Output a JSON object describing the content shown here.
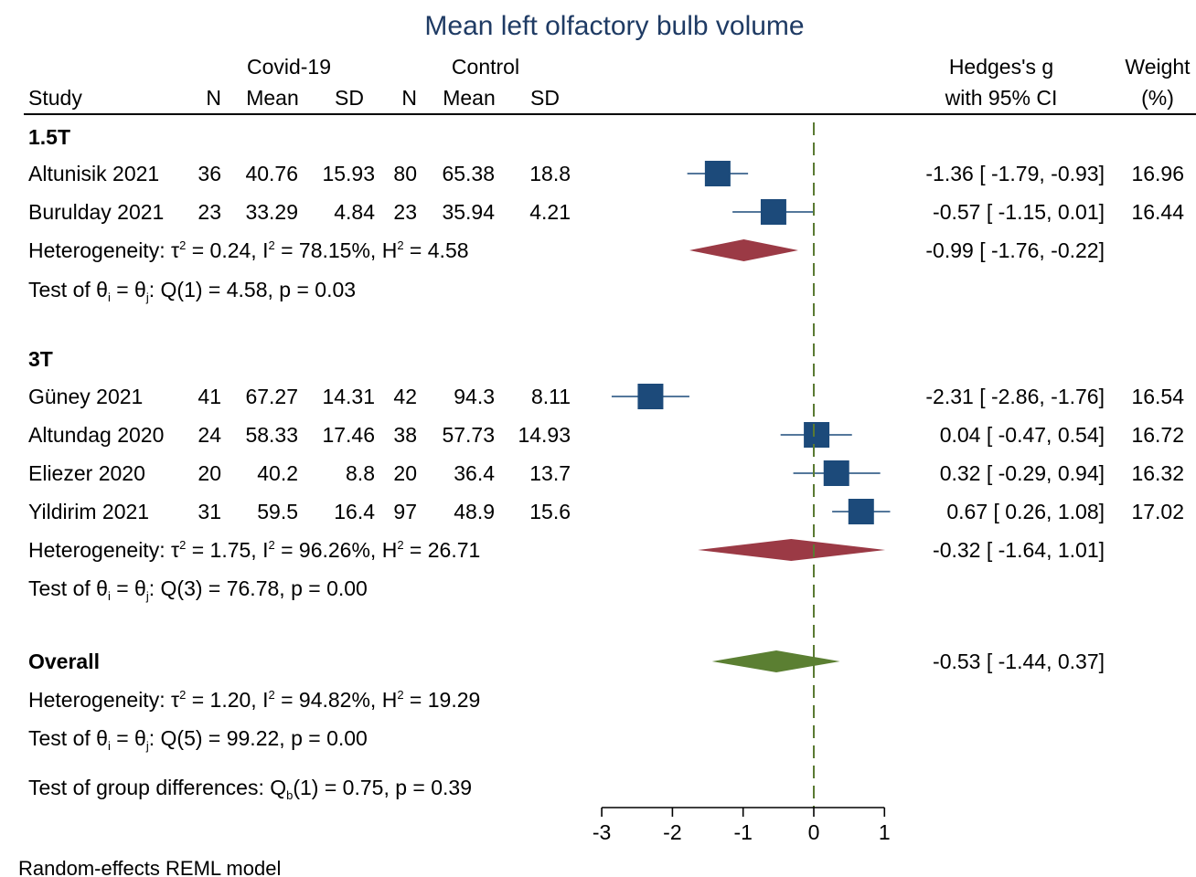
{
  "chart_data": {
    "type": "forest",
    "title": "Mean left olfactory bulb volume",
    "header": {
      "group1": "Covid-19",
      "group2": "Control",
      "study": "Study",
      "n": "N",
      "mean": "Mean",
      "sd": "SD",
      "effect_line1": "Hedges's g",
      "effect_line2": "with 95% CI",
      "weight_line1": "Weight",
      "weight_line2": "(%)"
    },
    "subgroups": [
      {
        "label": "1.5T",
        "studies": [
          {
            "name": "Altunisik 2021",
            "n1": "36",
            "mean1": "40.76",
            "sd1": "15.93",
            "n2": "80",
            "mean2": "65.38",
            "sd2": "18.8",
            "g": -1.36,
            "lo": -1.79,
            "hi": -0.93,
            "ci_text": "-1.36 [  -1.79,  -0.93]",
            "weight": "16.96"
          },
          {
            "name": "Burulday 2021",
            "n1": "23",
            "mean1": "33.29",
            "sd1": "4.84",
            "n2": "23",
            "mean2": "35.94",
            "sd2": "4.21",
            "g": -0.57,
            "lo": -1.15,
            "hi": 0.01,
            "ci_text": "-0.57 [  -1.15,   0.01]",
            "weight": "16.44"
          }
        ],
        "pooled": {
          "g": -0.99,
          "lo": -1.76,
          "hi": -0.22,
          "ci_text": "-0.99 [  -1.76,  -0.22]",
          "color": "#9b3a45"
        },
        "heterogeneity": {
          "prefix": "Heterogeneity: τ",
          "tau2": " = 0.24, I",
          "i2": " = 78.15%, H",
          "h2": " = 4.58",
          "sup": "2"
        },
        "test": {
          "prefix": "Test of θ",
          "sub1": "i",
          "mid": " = θ",
          "sub2": "j",
          "suffix": ": Q(1) = 4.58, p = 0.03"
        }
      },
      {
        "label": "3T",
        "studies": [
          {
            "name": "Güney 2021",
            "n1": "41",
            "mean1": "67.27",
            "sd1": "14.31",
            "n2": "42",
            "mean2": "94.3",
            "sd2": "8.11",
            "g": -2.31,
            "lo": -2.86,
            "hi": -1.76,
            "ci_text": "-2.31 [  -2.86,  -1.76]",
            "weight": "16.54"
          },
          {
            "name": "Altundag 2020",
            "n1": "24",
            "mean1": "58.33",
            "sd1": "17.46",
            "n2": "38",
            "mean2": "57.73",
            "sd2": "14.93",
            "g": 0.04,
            "lo": -0.47,
            "hi": 0.54,
            "ci_text": " 0.04 [  -0.47,   0.54]",
            "weight": "16.72"
          },
          {
            "name": "Eliezer 2020",
            "n1": "20",
            "mean1": "40.2",
            "sd1": "8.8",
            "n2": "20",
            "mean2": "36.4",
            "sd2": "13.7",
            "g": 0.32,
            "lo": -0.29,
            "hi": 0.94,
            "ci_text": " 0.32 [  -0.29,   0.94]",
            "weight": "16.32"
          },
          {
            "name": "Yildirim 2021",
            "n1": "31",
            "mean1": "59.5",
            "sd1": "16.4",
            "n2": "97",
            "mean2": "48.9",
            "sd2": "15.6",
            "g": 0.67,
            "lo": 0.26,
            "hi": 1.08,
            "ci_text": " 0.67 [   0.26,   1.08]",
            "weight": "17.02"
          }
        ],
        "pooled": {
          "g": -0.32,
          "lo": -1.64,
          "hi": 1.01,
          "ci_text": "-0.32 [  -1.64,   1.01]",
          "color": "#9b3a45"
        },
        "heterogeneity": {
          "prefix": "Heterogeneity: τ",
          "tau2": " = 1.75, I",
          "i2": " = 96.26%, H",
          "h2": " = 26.71",
          "sup": "2"
        },
        "test": {
          "prefix": "Test of θ",
          "sub1": "i",
          "mid": " = θ",
          "sub2": "j",
          "suffix": ": Q(3) = 76.78, p = 0.00"
        }
      }
    ],
    "overall": {
      "label": "Overall",
      "g": -0.53,
      "lo": -1.44,
      "hi": 0.37,
      "ci_text": "-0.53 [  -1.44,   0.37]",
      "color": "#5b7f32",
      "heterogeneity": {
        "prefix": "Heterogeneity: τ",
        "tau2": " = 1.20, I",
        "i2": " = 94.82%, H",
        "h2": " = 19.29",
        "sup": "2"
      },
      "test": {
        "prefix": "Test of θ",
        "sub1": "i",
        "mid": " = θ",
        "sub2": "j",
        "suffix": ": Q(5) = 99.22, p = 0.00"
      }
    },
    "group_diff": {
      "prefix": "Test of group differences: Q",
      "sub": "b",
      "suffix": "(1) = 0.75, p = 0.39"
    },
    "footnote": "Random-effects REML model",
    "axis": {
      "xlim": [
        -3,
        1
      ],
      "ticks": [
        -3,
        -2,
        -1,
        0,
        1
      ],
      "reference_line": 0
    },
    "colors": {
      "square": "#1c4a7a",
      "reference": "#5a7a32",
      "title": "#1f3b64"
    }
  }
}
